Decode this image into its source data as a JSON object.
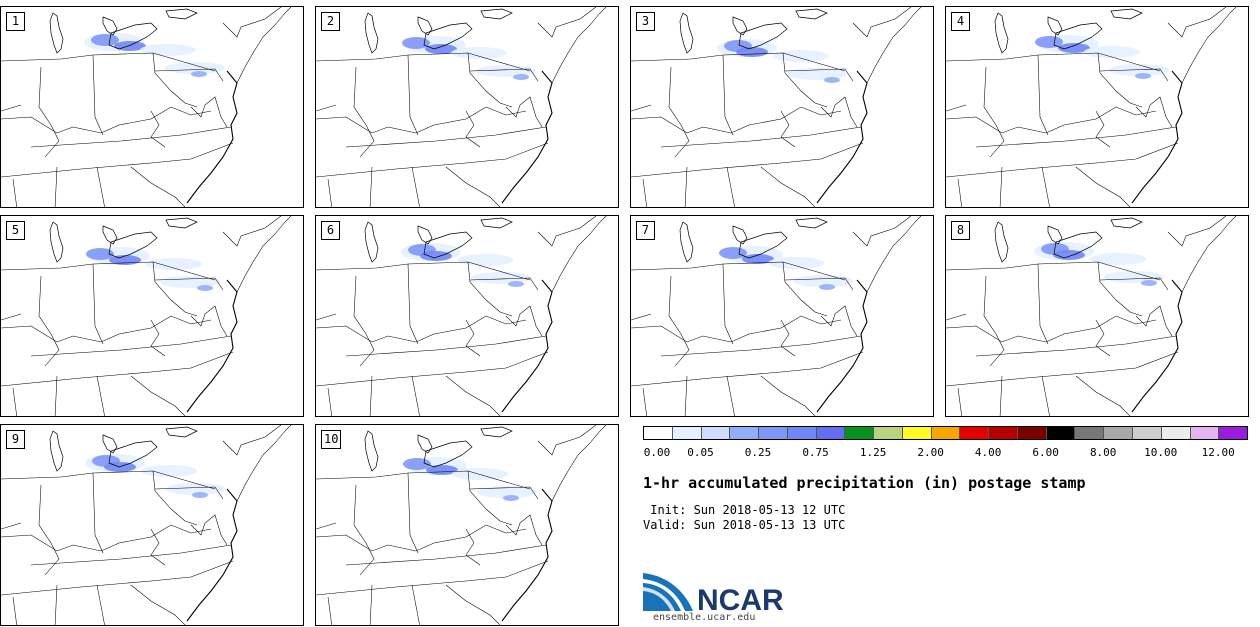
{
  "panels": [
    {
      "label": "1"
    },
    {
      "label": "2"
    },
    {
      "label": "3"
    },
    {
      "label": "4"
    },
    {
      "label": "5"
    },
    {
      "label": "6"
    },
    {
      "label": "7"
    },
    {
      "label": "8"
    },
    {
      "label": "9"
    },
    {
      "label": "10"
    }
  ],
  "colorbar": {
    "colors": [
      "#ffffff",
      "#e6f0ff",
      "#cfdcff",
      "#93aef8",
      "#7f97f6",
      "#7187f5",
      "#6270ef",
      "#07911d",
      "#b9d47c",
      "#fefb24",
      "#f9a600",
      "#e20202",
      "#b70000",
      "#7b0000",
      "#000000",
      "#777777",
      "#a9a9a9",
      "#cfcfcf",
      "#ececec",
      "#e4b5f0",
      "#9c1cdc"
    ],
    "tick_labels": [
      "0.00",
      "0.05",
      "0.25",
      "0.75",
      "1.25",
      "2.00",
      "4.00",
      "6.00",
      "8.00",
      "10.00",
      "12.00"
    ]
  },
  "title": "1-hr accumulated precipitation (in) postage stamp",
  "init_line": " Init: Sun 2018-05-13 12 UTC",
  "valid_line": "Valid: Sun 2018-05-13 13 UTC",
  "logo": {
    "text": "NCAR",
    "url": "ensemble.ucar.edu",
    "color": "#1b3a6b",
    "accent": "#1a73b8"
  }
}
